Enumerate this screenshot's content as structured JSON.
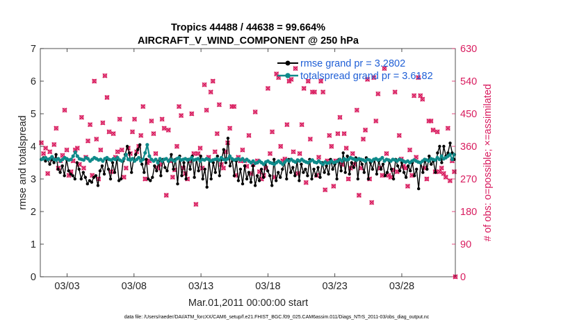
{
  "chart_data": {
    "type": "line",
    "title_line1": "Tropics 44488 / 44638 = 99.664%",
    "title_line2": "AIRCRAFT_V_WIND_COMPONENT @ 250 hPa",
    "xlabel": "Mar.01,2011 00:00:00 start",
    "ylabel_left": "rmse and totalspread",
    "ylabel_right": "# of obs: o=possible; ×=assimilated",
    "footer": "data file: /Users/raeder/DAI/ATM_forcXX/CAM6_setup/f.e21.FHIST_BGC.f09_025.CAM6assim.011/Diags_NTrS_2011-03/obs_diag_output.nc",
    "x_tick_labels": [
      "03/03",
      "03/08",
      "03/13",
      "03/18",
      "03/23",
      "03/28"
    ],
    "x_tick_days": [
      3,
      8,
      13,
      18,
      23,
      28
    ],
    "xlim_days": [
      1,
      32
    ],
    "ylim_left": [
      0,
      7
    ],
    "y_ticks_left": [
      "0",
      "1",
      "2",
      "3",
      "4",
      "5",
      "6",
      "7"
    ],
    "ylim_right": [
      0,
      630
    ],
    "y_ticks_right": [
      "0",
      "90",
      "180",
      "270",
      "360",
      "450",
      "540",
      "630"
    ],
    "legend_position": "top-right",
    "colors": {
      "rmse": "#000000",
      "spread": "#0f8a8a",
      "obs": "#d81b5e",
      "legend_text": "#1f5fd6",
      "right_axis": "#d81b5e"
    },
    "series": [
      {
        "name": "rmse grand pr = 3.2802",
        "color": "#000000",
        "values": [
          3.6,
          3.65,
          3.55,
          3.6,
          3.45,
          3.6,
          3.5,
          3.75,
          3.3,
          3.2,
          3.4,
          3.1,
          3.6,
          3.25,
          3.15,
          3.1,
          3.0,
          3.5,
          3.3,
          3.0,
          3.2,
          3.05,
          2.85,
          2.95,
          2.9,
          3.05,
          3.1,
          2.8,
          3.25,
          3.4,
          3.15,
          3.6,
          3.3,
          3.0,
          3.5,
          3.2,
          3.6,
          2.95,
          3.0,
          3.55,
          3.75,
          4.0,
          3.8,
          3.2,
          3.6,
          3.75,
          3.9,
          4.05,
          3.45,
          3.2,
          3.6,
          3.0,
          2.95,
          3.05,
          3.4,
          3.25,
          3.55,
          3.1,
          3.6,
          3.35,
          3.25,
          3.55,
          3.75,
          3.3,
          3.6,
          2.85,
          3.7,
          3.1,
          3.5,
          3.0,
          3.6,
          3.3,
          3.7,
          3.05,
          3.6,
          3.25,
          3.7,
          3.0,
          3.3,
          2.75,
          3.6,
          3.0,
          3.5,
          3.2,
          3.7,
          3.1,
          3.6,
          3.9,
          3.5,
          4.25,
          3.4,
          3.6,
          3.1,
          3.55,
          2.95,
          3.3,
          2.85,
          3.4,
          3.0,
          3.2,
          2.9,
          3.4,
          2.8,
          3.1,
          2.95,
          3.3,
          3.05,
          3.5,
          3.25,
          3.1,
          2.8,
          3.6,
          2.95,
          3.2,
          3.05,
          3.3,
          3.5,
          3.0,
          3.6,
          3.2,
          3.35,
          3.1,
          3.55,
          2.95,
          3.45,
          3.2,
          3.3,
          3.1,
          3.6,
          3.0,
          3.3,
          3.1,
          3.35,
          3.05,
          3.5,
          3.2,
          3.4,
          3.15,
          3.6,
          3.3,
          3.45,
          3.0,
          3.6,
          3.25,
          3.8,
          3.2,
          3.7,
          3.15,
          3.5,
          3.35,
          3.65,
          3.0,
          3.6,
          3.45,
          3.2,
          3.65,
          3.0,
          3.5,
          3.3,
          3.6,
          3.15,
          3.55,
          3.3,
          3.45,
          3.1,
          3.2,
          3.55,
          3.3,
          3.0,
          3.6,
          3.4,
          3.25,
          3.5,
          3.2,
          3.05,
          3.4,
          3.25,
          3.5,
          3.1,
          3.3,
          2.7,
          3.5,
          3.2,
          3.6,
          3.3,
          3.7,
          3.45,
          3.55,
          3.2,
          3.8,
          4.0,
          3.5,
          4.0,
          3.7,
          3.8,
          4.1,
          3.8,
          3.6
        ]
      },
      {
        "name": "totalspread grand pr = 3.6182",
        "color": "#0f8a8a",
        "values": [
          3.6,
          3.62,
          3.65,
          3.6,
          3.62,
          3.68,
          3.6,
          3.58,
          3.62,
          3.55,
          3.6,
          3.65,
          3.62,
          3.58,
          3.6,
          3.7,
          3.82,
          3.7,
          3.62,
          3.6,
          3.58,
          3.65,
          3.62,
          3.55,
          3.6,
          3.65,
          3.62,
          3.58,
          3.6,
          3.55,
          3.62,
          3.65,
          3.6,
          3.58,
          3.62,
          3.6,
          3.65,
          3.58,
          3.55,
          3.62,
          3.75,
          3.6,
          3.58,
          3.62,
          3.55,
          3.6,
          3.65,
          3.55,
          3.6,
          3.8,
          4.05,
          3.7,
          3.6,
          3.55,
          3.6,
          3.5,
          3.62,
          3.55,
          3.6,
          3.62,
          3.55,
          3.6,
          3.58,
          3.55,
          3.62,
          3.65,
          3.58,
          3.6,
          3.62,
          3.58,
          3.6,
          3.65,
          3.58,
          3.6,
          3.62,
          3.55,
          3.6,
          3.58,
          3.62,
          3.6,
          3.55,
          3.58,
          3.6,
          3.62,
          3.58,
          3.65,
          3.6,
          3.58,
          3.62,
          3.7,
          3.62,
          3.58,
          3.6,
          3.62,
          3.58,
          3.62,
          3.55,
          3.6,
          3.55,
          3.5,
          3.55,
          3.48,
          3.5,
          3.55,
          3.5,
          3.45,
          3.52,
          3.55,
          3.5,
          3.48,
          3.45,
          3.5,
          3.55,
          3.5,
          3.45,
          3.52,
          3.58,
          3.55,
          3.6,
          3.55,
          3.52,
          3.58,
          3.55,
          3.6,
          3.55,
          3.52,
          3.5,
          3.55,
          3.58,
          3.52,
          3.5,
          3.55,
          3.5,
          3.45,
          3.52,
          3.48,
          3.5,
          3.55,
          3.5,
          3.52,
          3.55,
          3.6,
          3.55,
          3.62,
          3.58,
          3.6,
          3.65,
          3.62,
          3.6,
          3.58,
          3.62,
          3.6,
          3.58,
          3.55,
          3.6,
          3.58,
          3.55,
          3.6,
          3.62,
          3.58,
          3.6,
          3.65,
          3.55,
          3.6,
          3.58,
          3.55,
          3.6,
          3.58,
          3.55,
          3.6,
          3.58,
          3.55,
          3.52,
          3.55,
          3.5,
          3.55,
          3.58,
          3.55,
          3.52,
          3.5,
          3.55,
          3.6,
          3.58,
          3.55,
          3.62,
          3.6,
          3.58,
          3.65,
          3.6,
          3.7,
          3.62,
          3.65,
          3.7,
          3.75,
          3.6,
          3.75
        ]
      },
      {
        "name": "# of obs",
        "axis": "right",
        "color": "#d81b5e",
        "values": [
          370,
          340,
          355,
          285,
          345,
          325,
          365,
          410,
          300,
          320,
          335,
          460,
          350,
          280,
          290,
          320,
          350,
          355,
          310,
          440,
          300,
          330,
          375,
          420,
          280,
          540,
          380,
          270,
          350,
          425,
          555,
          495,
          400,
          290,
          395,
          330,
          345,
          435,
          350,
          275,
          300,
          355,
          340,
          400,
          435,
          345,
          360,
          390,
          470,
          270,
          315,
          320,
          430,
          395,
          340,
          300,
          310,
          435,
          410,
          225,
          405,
          320,
          275,
          295,
          360,
          470,
          445,
          300,
          285,
          270,
          320,
          450,
          340,
          200,
          340,
          355,
          300,
          530,
          460,
          330,
          510,
          540,
          345,
          395,
          475,
          310,
          300,
          345,
          370,
          410,
          470,
          470,
          280,
          330,
          320,
          350,
          320,
          305,
          390,
          285,
          310,
          455,
          320,
          290,
          270,
          280,
          300,
          520,
          340,
          400,
          275,
          560,
          550,
          360,
          320,
          325,
          420,
          540,
          545,
          345,
          575,
          285,
          340,
          420,
          520,
          260,
          540,
          380,
          510,
          510,
          280,
          330,
          540,
          510,
          240,
          320,
          390,
          360,
          250,
          320,
          395,
          440,
          310,
          395,
          355,
          270,
          300,
          340,
          310,
          460,
          225,
          300,
          380,
          405,
          545,
          270,
          205,
          550,
          430,
          505,
          300,
          280,
          575,
          340,
          280,
          275,
          295,
          510,
          290,
          390,
          325,
          305,
          300,
          250,
          350,
          280,
          500,
          330,
          550,
          500,
          490,
          300,
          270,
          430,
          430,
          405,
          290,
          400,
          290,
          300,
          285,
          275,
          410,
          265,
          320,
          290
        ]
      }
    ]
  }
}
